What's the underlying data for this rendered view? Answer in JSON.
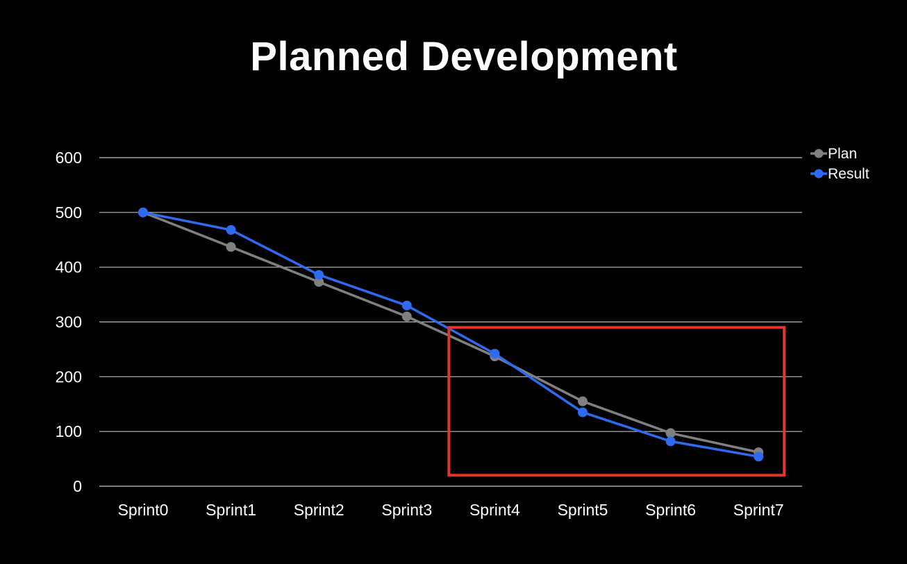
{
  "chart_data": {
    "type": "line",
    "title": "Planned Development",
    "xlabel": "",
    "ylabel": "",
    "categories": [
      "Sprint0",
      "Sprint1",
      "Sprint2",
      "Sprint3",
      "Sprint4",
      "Sprint5",
      "Sprint6",
      "Sprint7"
    ],
    "ylim": [
      0,
      600
    ],
    "yticks": [
      "0",
      "100",
      "200",
      "300",
      "400",
      "500",
      "600"
    ],
    "grid": true,
    "legend_position": "top-right",
    "series": [
      {
        "name": "Plan",
        "color": "#808080",
        "values": [
          500,
          437,
          373,
          310,
          237,
          155,
          97,
          62
        ]
      },
      {
        "name": "Result",
        "color": "#2f6bf2",
        "values": [
          500,
          468,
          386,
          330,
          242,
          135,
          82,
          54
        ]
      }
    ],
    "annotations": [
      {
        "type": "highlight-box",
        "color": "#e0362c",
        "x_from": "Sprint4",
        "x_to": "Sprint7",
        "y_from": 20,
        "y_to": 290
      }
    ]
  }
}
